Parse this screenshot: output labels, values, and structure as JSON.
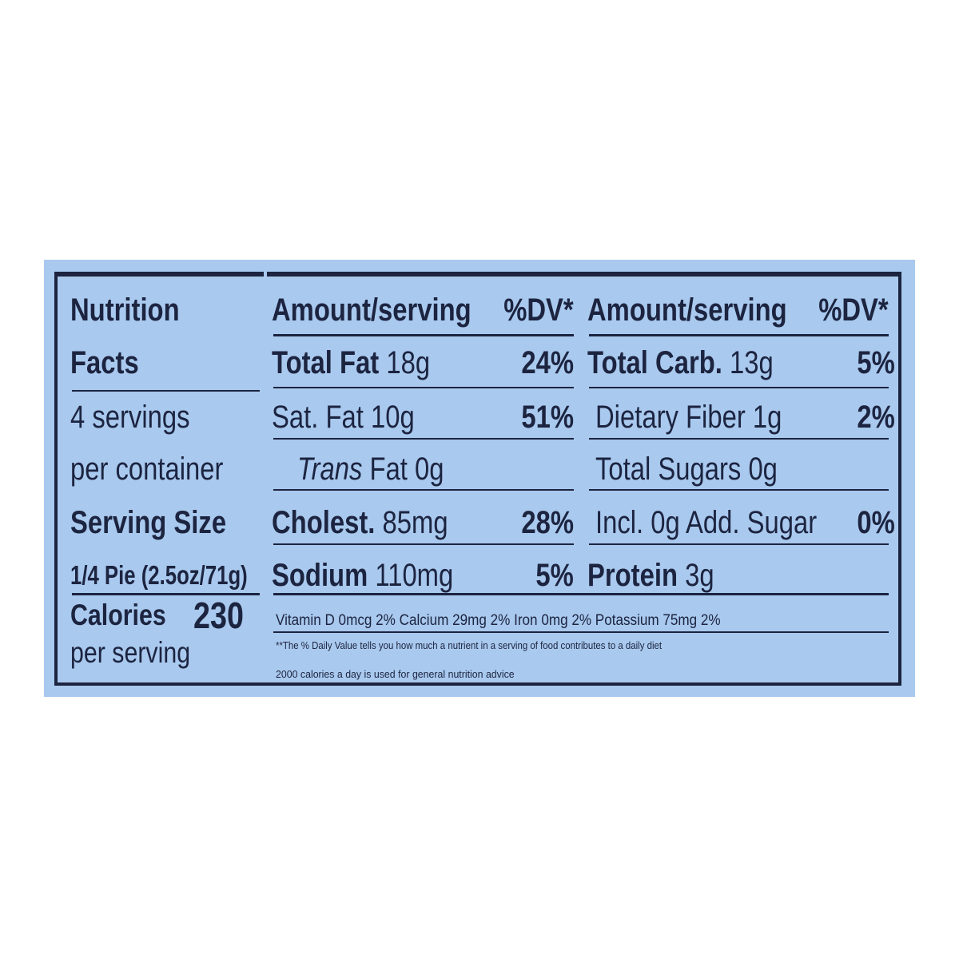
{
  "label": {
    "title_line1": "Nutrition",
    "title_line2": "Facts",
    "servings_line1": "4 servings",
    "servings_line2": "per container",
    "serving_size_label": "Serving Size",
    "serving_size_value": "1/4 Pie (2.5oz/71g)",
    "calories_label": "Calories",
    "calories_value": "230",
    "calories_per": "per serving",
    "header_amount": "Amount/serving",
    "header_dv": "%DV*",
    "left_nutrients": [
      {
        "name": "Total Fat",
        "amount": "18g",
        "dv": "24%"
      },
      {
        "name": "Sat. Fat",
        "amount": "10g",
        "dv": "51%"
      },
      {
        "name": "Trans",
        "amount": "Fat 0g",
        "dv": ""
      },
      {
        "name": "Cholest.",
        "amount": "85mg",
        "dv": "28%"
      },
      {
        "name": "Sodium",
        "amount": "110mg",
        "dv": "5%"
      }
    ],
    "right_nutrients": [
      {
        "name": "Total Carb.",
        "amount": "13g",
        "dv": "5%"
      },
      {
        "name": "Dietary Fiber",
        "amount": "1g",
        "dv": "2%"
      },
      {
        "name": "Total Sugars",
        "amount": "0g",
        "dv": ""
      },
      {
        "name": "Incl. 0g Add. Sugar",
        "amount": "",
        "dv": "0%"
      },
      {
        "name": "Protein",
        "amount": "3g",
        "dv": ""
      }
    ],
    "vitamins": "Vitamin D 0mcg 2%  Calcium 29mg 2%  Iron 0mg 2%  Potassium 75mg 2%",
    "footnote_line1": "**The % Daily Value tells you how much a nutrient in a serving of food contributes to a daily diet",
    "footnote_line2": "2000 calories a day is used for general nutrition advice"
  },
  "colors": {
    "panel": "#a9c9ee",
    "ink": "#1c2440"
  }
}
